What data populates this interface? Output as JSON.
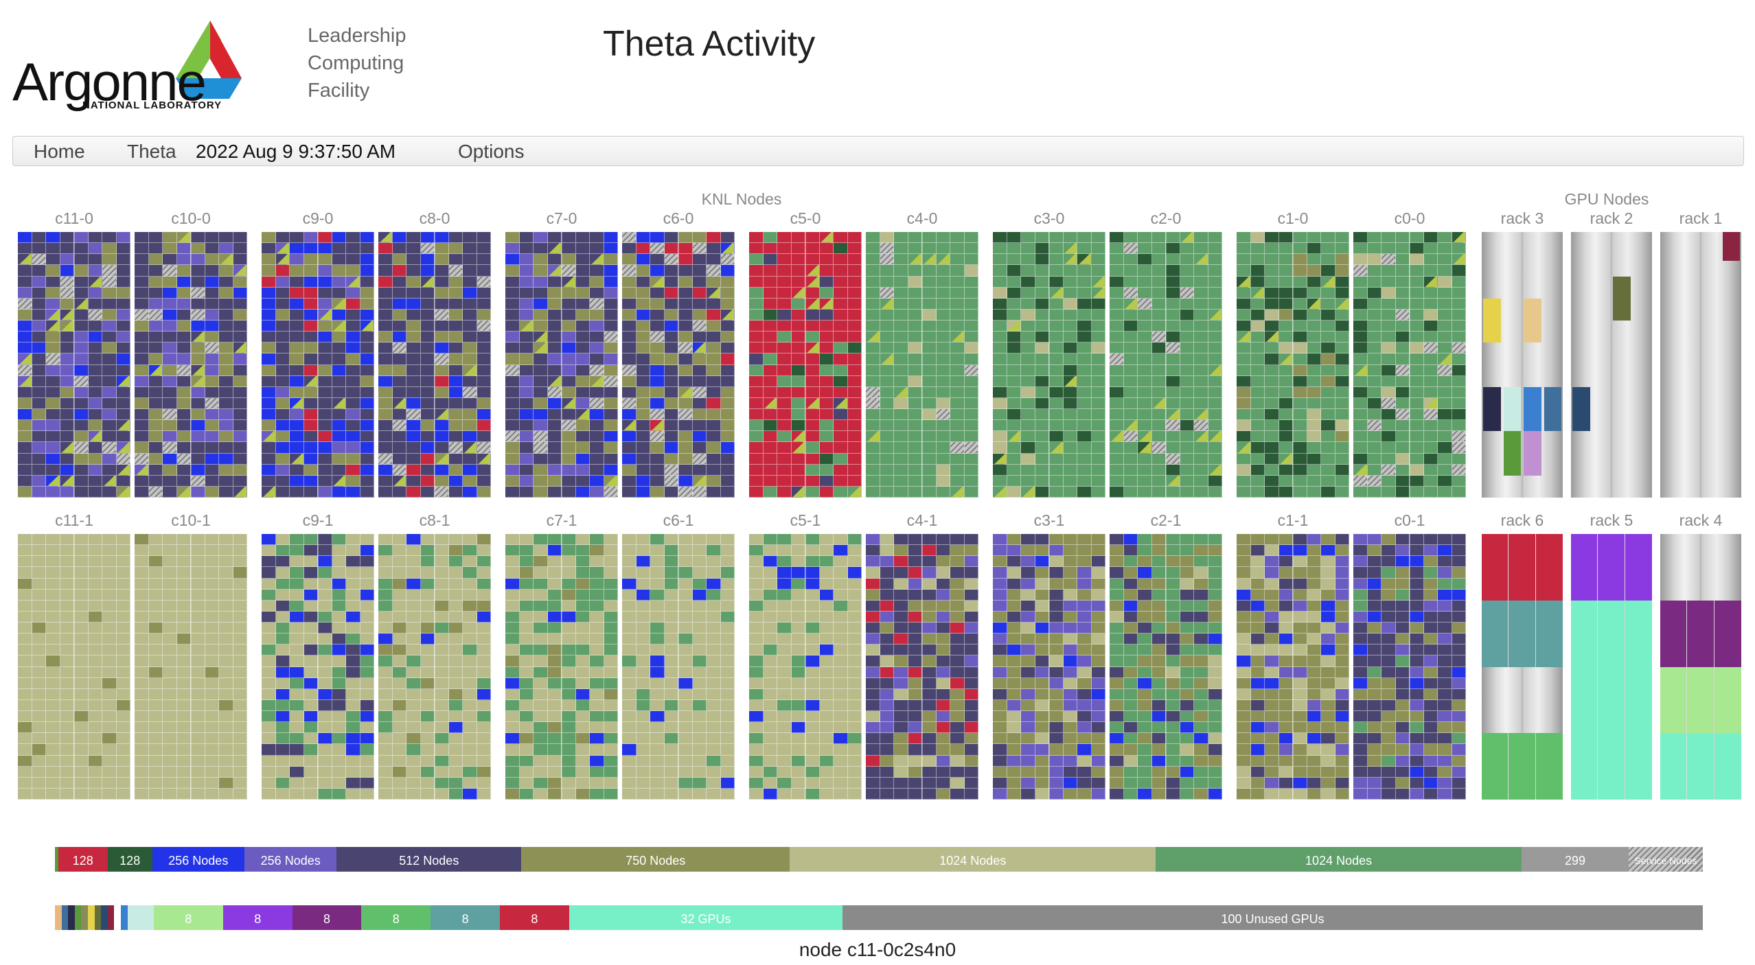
{
  "logo": {
    "word": "Argonne",
    "sub": "NATIONAL LABORATORY"
  },
  "lcf": [
    "Leadership",
    "Computing",
    "Facility"
  ],
  "title": "Theta Activity",
  "nav": {
    "home": "Home",
    "machine": "Theta",
    "timestamp": "2022 Aug 9 9:37:50 AM",
    "options": "Options"
  },
  "groups": {
    "knl": "KNL Nodes",
    "gpu": "GPU Nodes"
  },
  "colors": {
    "red": "#c7283f",
    "darkgreen": "#2a5a36",
    "blue": "#2233e8",
    "purple": "#6b5cc2",
    "navy": "#4a4570",
    "olive": "#8d9156",
    "tan": "#b9bb8b",
    "green": "#5f9f6a",
    "gray": "#9a9a9a"
  },
  "knl_rows": [
    [
      {
        "label": "c11-0",
        "palette": [
          "navy",
          "purple",
          "olive",
          "blue",
          "hatch"
        ]
      },
      {
        "label": "c10-0",
        "palette": [
          "navy",
          "olive",
          "purple",
          "hatch",
          "blue"
        ]
      },
      {
        "label": "c9-0",
        "palette": [
          "navy",
          "blue",
          "olive",
          "purple",
          "red"
        ]
      },
      {
        "label": "c8-0",
        "palette": [
          "navy",
          "olive",
          "blue",
          "hatch",
          "red"
        ]
      },
      {
        "label": "c7-0",
        "palette": [
          "navy",
          "olive",
          "purple",
          "blue",
          "hatch"
        ]
      },
      {
        "label": "c6-0",
        "palette": [
          "navy",
          "olive",
          "blue",
          "hatch",
          "red"
        ]
      },
      {
        "label": "c5-0",
        "palette": [
          "red",
          "red",
          "green",
          "navy",
          "darkgreen"
        ]
      },
      {
        "label": "c4-0",
        "palette": [
          "green",
          "green",
          "green",
          "tan",
          "hatch"
        ]
      },
      {
        "label": "c3-0",
        "palette": [
          "green",
          "green",
          "darkgreen",
          "green",
          "tan"
        ]
      },
      {
        "label": "c2-0",
        "palette": [
          "green",
          "green",
          "green",
          "darkgreen",
          "hatch"
        ]
      },
      {
        "label": "c1-0",
        "palette": [
          "green",
          "darkgreen",
          "green",
          "olive",
          "tan"
        ]
      },
      {
        "label": "c0-0",
        "palette": [
          "green",
          "green",
          "darkgreen",
          "hatch",
          "tan"
        ]
      }
    ],
    [
      {
        "label": "c11-1",
        "palette": [
          "tan",
          "tan",
          "tan",
          "tan",
          "olive"
        ]
      },
      {
        "label": "c10-1",
        "palette": [
          "tan",
          "tan",
          "tan",
          "tan",
          "olive"
        ]
      },
      {
        "label": "c9-1",
        "palette": [
          "tan",
          "green",
          "navy",
          "blue",
          "tan"
        ]
      },
      {
        "label": "c8-1",
        "palette": [
          "tan",
          "tan",
          "green",
          "olive",
          "blue"
        ]
      },
      {
        "label": "c7-1",
        "palette": [
          "tan",
          "green",
          "green",
          "olive",
          "blue"
        ]
      },
      {
        "label": "c6-1",
        "palette": [
          "tan",
          "tan",
          "green",
          "tan",
          "blue"
        ]
      },
      {
        "label": "c5-1",
        "palette": [
          "tan",
          "tan",
          "green",
          "blue",
          "tan"
        ]
      },
      {
        "label": "c4-1",
        "palette": [
          "navy",
          "olive",
          "purple",
          "tan",
          "red"
        ]
      },
      {
        "label": "c3-1",
        "palette": [
          "olive",
          "purple",
          "navy",
          "tan",
          "blue"
        ]
      },
      {
        "label": "c2-1",
        "palette": [
          "green",
          "olive",
          "navy",
          "blue",
          "tan"
        ]
      },
      {
        "label": "c1-1",
        "palette": [
          "olive",
          "tan",
          "purple",
          "blue",
          "navy"
        ]
      },
      {
        "label": "c0-1",
        "palette": [
          "navy",
          "olive",
          "purple",
          "blue",
          "green"
        ]
      }
    ]
  ],
  "gpu_rows": [
    [
      {
        "label": "rack 3",
        "blocks": [
          {
            "col": 0,
            "row": 3,
            "h": 2,
            "color": "#e6d24a"
          },
          {
            "col": 2,
            "row": 3,
            "h": 2,
            "color": "#e8c88a"
          },
          {
            "col": 0,
            "row": 7,
            "h": 2,
            "color": "#2a2a4a"
          },
          {
            "col": 1,
            "row": 7,
            "h": 2,
            "color": "#c8ece4"
          },
          {
            "col": 2,
            "row": 7,
            "h": 2,
            "color": "#3a7fd0"
          },
          {
            "col": 3,
            "row": 7,
            "h": 2,
            "color": "#3f6f9a"
          },
          {
            "col": 1,
            "row": 9,
            "h": 2,
            "color": "#5a9a3a"
          },
          {
            "col": 2,
            "row": 9,
            "h": 2,
            "color": "#c090d0"
          }
        ]
      },
      {
        "label": "rack 2",
        "blocks": [
          {
            "col": 2,
            "row": 2,
            "h": 2,
            "color": "#666e3a"
          },
          {
            "col": 0,
            "row": 7,
            "h": 2,
            "color": "#2a4a70"
          }
        ]
      },
      {
        "label": "rack 1",
        "blocks": [
          {
            "col": 3,
            "row": 0,
            "h": 1.3,
            "color": "#8a2440"
          }
        ]
      }
    ],
    [
      {
        "label": "rack 6",
        "bands": [
          "#c7283f",
          "#5fa0a0",
          "gpu",
          "#5fbf6a"
        ]
      },
      {
        "label": "rack 5",
        "bands": [
          "#8a3ae0",
          "#77f0c8",
          "#77f0c8",
          "#77f0c8"
        ]
      },
      {
        "label": "rack 4",
        "bands": [
          "gpu",
          "#7a2a80",
          "#a8e890",
          "#77f0c8"
        ]
      }
    ]
  ],
  "node_bar": [
    {
      "label": "",
      "color": "#5a9a3a",
      "frac": 0.002
    },
    {
      "label": "128",
      "color": "#c7283f",
      "frac": 0.03
    },
    {
      "label": "128",
      "color": "#2a5a36",
      "frac": 0.027
    },
    {
      "label": "256 Nodes",
      "color": "#2233e8",
      "frac": 0.056
    },
    {
      "label": "256 Nodes",
      "color": "#6b5cc2",
      "frac": 0.056
    },
    {
      "label": "512 Nodes",
      "color": "#4a4570",
      "frac": 0.112
    },
    {
      "label": "750 Nodes",
      "color": "#8d9156",
      "frac": 0.163
    },
    {
      "label": "1024 Nodes",
      "color": "#b9bb8b",
      "frac": 0.222
    },
    {
      "label": "1024 Nodes",
      "color": "#5f9f6a",
      "frac": 0.222
    },
    {
      "label": "299",
      "color": "#9a9a9a",
      "frac": 0.065
    },
    {
      "label": "Service Nodes",
      "color": "hatch",
      "frac": 0.045
    }
  ],
  "gpu_bar": [
    {
      "label": "",
      "color": "#e8b880",
      "frac": 0.004
    },
    {
      "label": "",
      "color": "#3f6f9a",
      "frac": 0.004
    },
    {
      "label": "",
      "color": "#2a2a4a",
      "frac": 0.004
    },
    {
      "label": "",
      "color": "#5a9a3a",
      "frac": 0.004
    },
    {
      "label": "",
      "color": "#8a8a5a",
      "frac": 0.004
    },
    {
      "label": "",
      "color": "#e6d24a",
      "frac": 0.004
    },
    {
      "label": "",
      "color": "#666e3a",
      "frac": 0.004
    },
    {
      "label": "",
      "color": "#2a4a70",
      "frac": 0.004
    },
    {
      "label": "",
      "color": "#8a2440",
      "frac": 0.004
    },
    {
      "label": "",
      "color": "#ffffff",
      "frac": 0.004
    },
    {
      "label": "",
      "color": "#3a7fd0",
      "frac": 0.004
    },
    {
      "label": "",
      "color": "#c8ece4",
      "frac": 0.016
    },
    {
      "label": "8",
      "color": "#a8e890",
      "frac": 0.042
    },
    {
      "label": "8",
      "color": "#8a3ae0",
      "frac": 0.042
    },
    {
      "label": "8",
      "color": "#7a2a80",
      "frac": 0.042
    },
    {
      "label": "8",
      "color": "#5fbf6a",
      "frac": 0.042
    },
    {
      "label": "8",
      "color": "#5fa0a0",
      "frac": 0.042
    },
    {
      "label": "8",
      "color": "#c7283f",
      "frac": 0.042
    },
    {
      "label": "32 GPUs",
      "color": "#77f0c8",
      "frac": 0.166
    },
    {
      "label": "100 Unused GPUs",
      "color": "#8a8a8a",
      "frac": 0.522
    }
  ],
  "node_status": "node c11-0c2s4n0"
}
